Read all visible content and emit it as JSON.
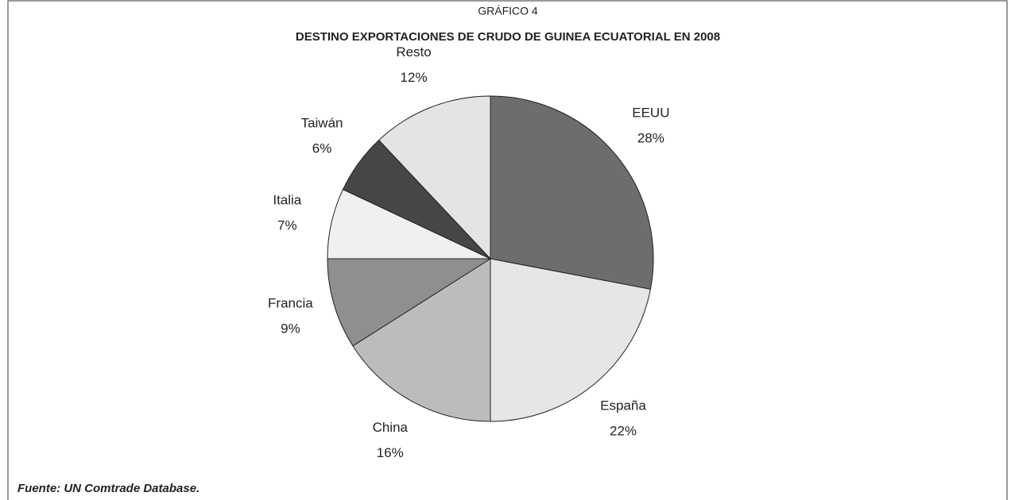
{
  "chart_data": {
    "type": "pie",
    "title": "GRÁFICO 4",
    "subtitle": "DESTINO EXPORTACIONES DE CRUDO DE GUINEA ECUATORIAL EN 2008",
    "categories": [
      "EEUU",
      "España",
      "China",
      "Francia",
      "Italia",
      "Taiwán",
      "Resto"
    ],
    "values": [
      28,
      22,
      16,
      9,
      7,
      6,
      12
    ],
    "value_labels": [
      "28%",
      "22%",
      "16%",
      "9%",
      "7%",
      "6%",
      "12%"
    ],
    "colors": [
      "#6d6d6d",
      "#e6e6e6",
      "#bcbcbc",
      "#8f8f8f",
      "#f0f0f0",
      "#464646",
      "#e4e4e4"
    ],
    "source": "Fuente: UN Comtrade Database."
  }
}
